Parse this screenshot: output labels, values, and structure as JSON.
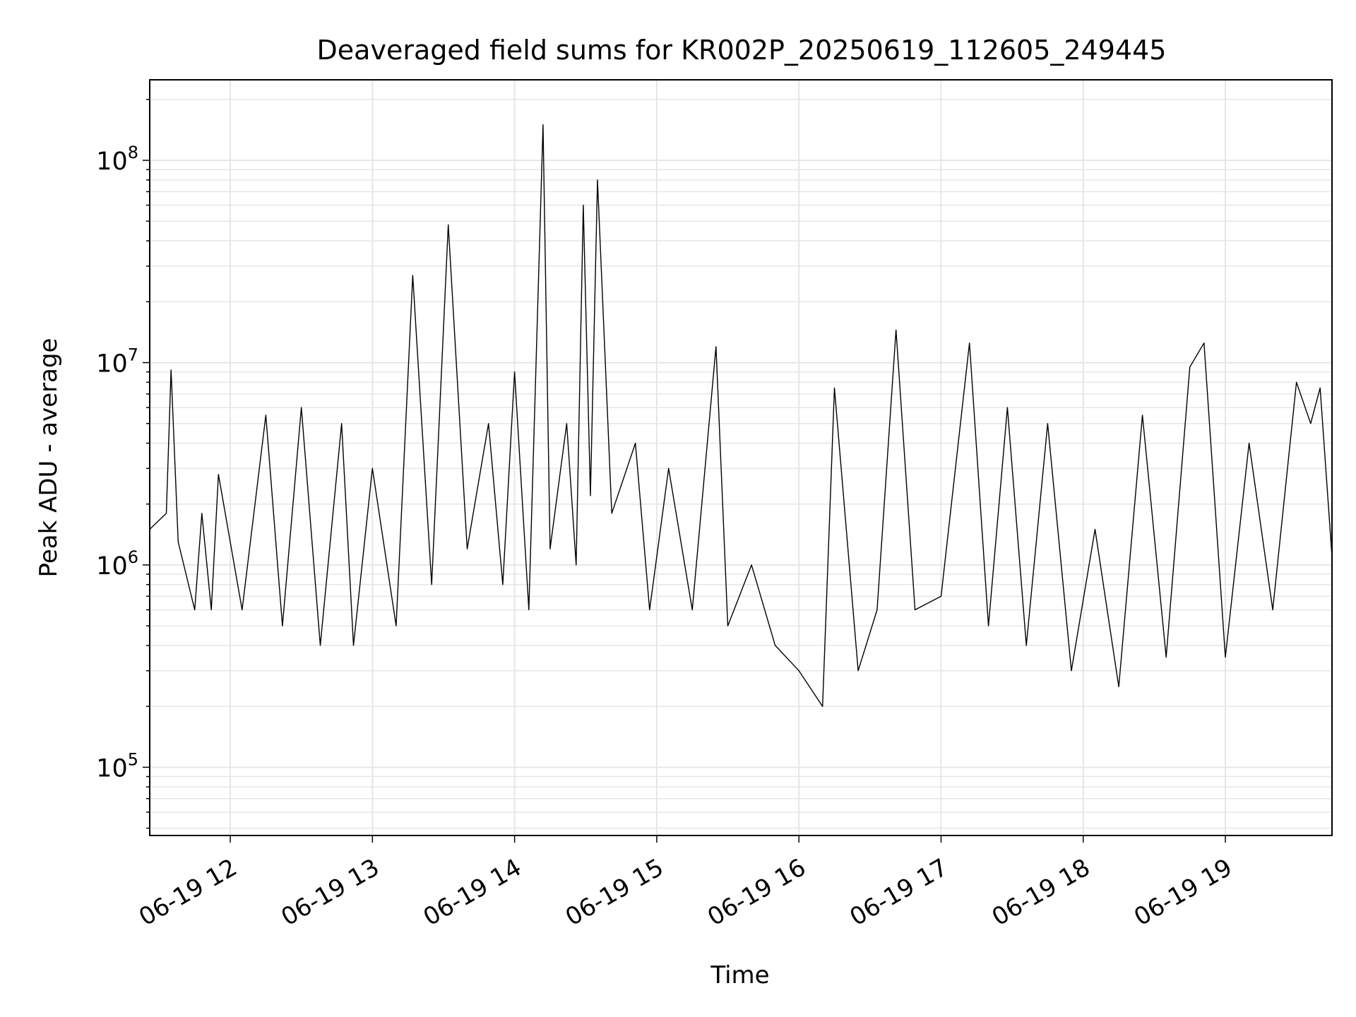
{
  "chart_data": {
    "type": "line",
    "title": "Deaveraged field sums for KR002P_20250619_112605_249445",
    "xlabel": "Time",
    "ylabel": "Peak ADU - average",
    "x_scale": "time",
    "y_scale": "log",
    "xlim": [
      "2025-06-19 11:26",
      "2025-06-19 19:45"
    ],
    "ylim": [
      46000,
      250000000
    ],
    "grid": true,
    "legend": "none",
    "line_color": "#000000",
    "grid_color": "#e6e6e6",
    "x_ticks": [
      "2025-06-19 12:00",
      "2025-06-19 13:00",
      "2025-06-19 14:00",
      "2025-06-19 15:00",
      "2025-06-19 16:00",
      "2025-06-19 17:00",
      "2025-06-19 18:00",
      "2025-06-19 19:00"
    ],
    "x_tick_labels": [
      "06-19 12",
      "06-19 13",
      "06-19 14",
      "06-19 15",
      "06-19 16",
      "06-19 17",
      "06-19 18",
      "06-19 19"
    ],
    "y_ticks": [
      100000,
      1000000,
      10000000,
      100000000
    ],
    "y_tick_labels": [
      {
        "base": "10",
        "exp": "5"
      },
      {
        "base": "10",
        "exp": "6"
      },
      {
        "base": "10",
        "exp": "7"
      },
      {
        "base": "10",
        "exp": "8"
      }
    ],
    "series": [
      {
        "x": [
          "2025-06-19 11:26",
          "2025-06-19 11:33",
          "2025-06-19 11:35",
          "2025-06-19 11:38",
          "2025-06-19 11:45",
          "2025-06-19 11:48",
          "2025-06-19 11:52",
          "2025-06-19 11:55",
          "2025-06-19 12:05",
          "2025-06-19 12:15",
          "2025-06-19 12:22",
          "2025-06-19 12:30",
          "2025-06-19 12:38",
          "2025-06-19 12:47",
          "2025-06-19 12:52",
          "2025-06-19 13:00",
          "2025-06-19 13:10",
          "2025-06-19 13:17",
          "2025-06-19 13:25",
          "2025-06-19 13:32",
          "2025-06-19 13:40",
          "2025-06-19 13:49",
          "2025-06-19 13:55",
          "2025-06-19 14:00",
          "2025-06-19 14:06",
          "2025-06-19 14:12",
          "2025-06-19 14:15",
          "2025-06-19 14:22",
          "2025-06-19 14:26",
          "2025-06-19 14:29",
          "2025-06-19 14:32",
          "2025-06-19 14:35",
          "2025-06-19 14:41",
          "2025-06-19 14:51",
          "2025-06-19 14:57",
          "2025-06-19 15:05",
          "2025-06-19 15:15",
          "2025-06-19 15:25",
          "2025-06-19 15:30",
          "2025-06-19 15:40",
          "2025-06-19 15:50",
          "2025-06-19 16:00",
          "2025-06-19 16:10",
          "2025-06-19 16:15",
          "2025-06-19 16:25",
          "2025-06-19 16:33",
          "2025-06-19 16:41",
          "2025-06-19 16:49",
          "2025-06-19 17:00",
          "2025-06-19 17:12",
          "2025-06-19 17:20",
          "2025-06-19 17:28",
          "2025-06-19 17:36",
          "2025-06-19 17:45",
          "2025-06-19 17:55",
          "2025-06-19 18:05",
          "2025-06-19 18:15",
          "2025-06-19 18:25",
          "2025-06-19 18:35",
          "2025-06-19 18:45",
          "2025-06-19 18:51",
          "2025-06-19 19:00",
          "2025-06-19 19:10",
          "2025-06-19 19:20",
          "2025-06-19 19:30",
          "2025-06-19 19:36",
          "2025-06-19 19:40",
          "2025-06-19 19:45"
        ],
        "y": [
          1500000,
          1800000,
          9200000,
          1300000,
          600000,
          1800000,
          600000,
          2800000,
          600000,
          5500000,
          500000,
          6000000,
          400000,
          5000000,
          400000,
          3000000,
          500000,
          27000000,
          800000,
          48000000,
          1200000,
          5000000,
          800000,
          9000000,
          600000,
          150000000,
          1200000,
          5000000,
          1000000,
          60000000,
          2200000,
          80000000,
          1800000,
          4000000,
          600000,
          3000000,
          600000,
          12000000,
          500000,
          1000000,
          400000,
          300000,
          200000,
          7500000,
          300000,
          600000,
          14500000,
          600000,
          700000,
          12500000,
          500000,
          6000000,
          400000,
          5000000,
          300000,
          1500000,
          250000,
          5500000,
          350000,
          9500000,
          12500000,
          350000,
          4000000,
          600000,
          8000000,
          5000000,
          7500000,
          1100000
        ]
      }
    ]
  }
}
